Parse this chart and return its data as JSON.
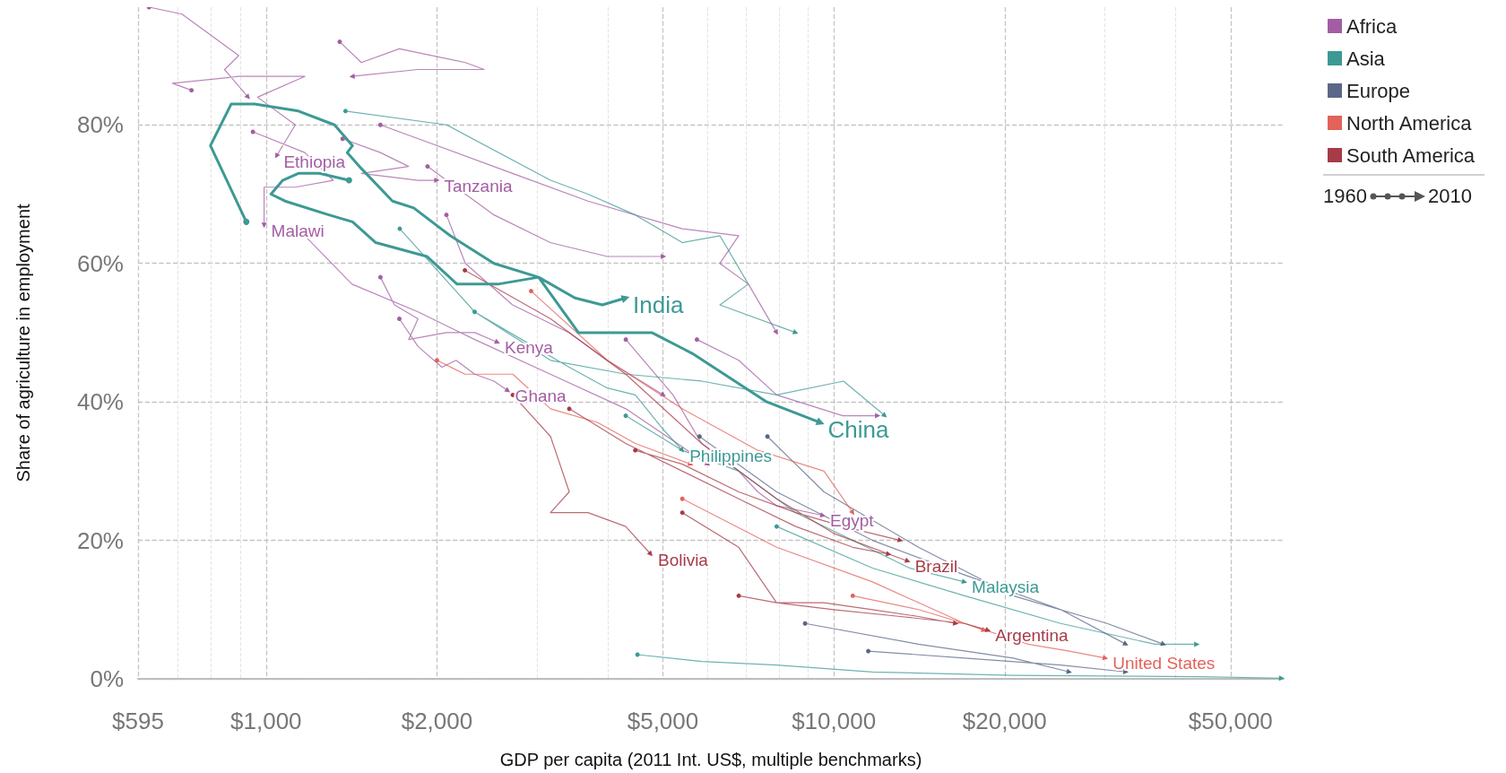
{
  "chart_data": {
    "type": "line",
    "xlabel": "GDP per capita (2011 Int. US$, multiple benchmarks)",
    "ylabel": "Share of agriculture in employment",
    "log": "x",
    "xlim": [
      595,
      62000
    ],
    "xticks": [
      {
        "value": 595,
        "label": "$595"
      },
      {
        "value": 700,
        "label": null
      },
      {
        "value": 800,
        "label": null
      },
      {
        "value": 900,
        "label": null
      },
      {
        "value": 1000,
        "label": "$1,000"
      },
      {
        "value": 2000,
        "label": "$2,000"
      },
      {
        "value": 3000,
        "label": null
      },
      {
        "value": 4000,
        "label": null
      },
      {
        "value": 5000,
        "label": "$5,000"
      },
      {
        "value": 6000,
        "label": null
      },
      {
        "value": 7000,
        "label": null
      },
      {
        "value": 8000,
        "label": null
      },
      {
        "value": 9000,
        "label": null
      },
      {
        "value": 10000,
        "label": "$10,000"
      },
      {
        "value": 20000,
        "label": "$20,000"
      },
      {
        "value": 30000,
        "label": null
      },
      {
        "value": 40000,
        "label": null
      },
      {
        "value": 50000,
        "label": "$50,000"
      }
    ],
    "ylim": [
      0,
      97
    ],
    "yticks": [
      {
        "value": 0,
        "label": "0%"
      },
      {
        "value": 20,
        "label": "20%"
      },
      {
        "value": 40,
        "label": "40%"
      },
      {
        "value": 60,
        "label": "60%"
      },
      {
        "value": 80,
        "label": "80%"
      }
    ],
    "grid": true,
    "legend": "top right",
    "series": [
      {
        "name": "Africa",
        "color": "#a35ea3",
        "x": [
          739,
          684,
          895,
          1170,
          966,
          1126,
          1043,
          null,
          948,
          1170,
          1313,
          1126,
          992,
          992,
          null,
          1364,
          1590,
          1783,
          1472,
          1852,
          2000,
          null,
          1590,
          1683,
          1852,
          1783,
          2078,
          2331,
          2557,
          null,
          1717,
          1852,
          2040,
          2161,
          2331,
          2520,
          2667,
          null,
          4302,
          5209,
          5850,
          6800,
          7346,
          7930,
          9570,
          null,
          622,
          711,
          829,
          895,
          845,
          930,
          null,
          1348,
          1472,
          1717,
          2244,
          2422,
          1852,
          1417,
          null,
          1590,
          2717,
          3690,
          5410,
          6800,
          6300,
          7074,
          7930,
          null,
          1925,
          2520,
          3167,
          3988,
          5013,
          null,
          5740,
          6800,
          7930,
          10372,
          11950,
          null,
          1170,
          1417,
          1852,
          2331,
          3167,
          4302,
          6000,
          null,
          2078,
          2244,
          2717,
          3418,
          3988,
          5013
        ],
        "values": [
          85,
          86,
          87,
          87,
          84,
          80,
          75.5,
          null,
          79,
          76,
          72,
          71,
          71,
          65.5,
          null,
          78,
          76,
          74,
          73,
          72,
          72,
          null,
          58,
          54,
          52,
          49,
          50,
          50,
          48.6,
          null,
          52,
          48,
          45,
          46,
          44,
          43,
          41.6,
          null,
          49,
          41,
          34,
          30,
          27,
          25,
          23.6,
          null,
          97,
          96,
          92,
          90,
          88,
          84,
          null,
          92,
          89,
          91,
          89,
          88,
          88,
          87,
          null,
          80,
          73,
          69,
          65,
          64,
          60,
          57,
          50,
          null,
          74,
          67,
          63,
          61,
          61,
          null,
          49,
          46,
          41,
          38,
          38,
          null,
          64,
          57,
          53,
          49,
          44,
          39,
          31,
          null,
          67,
          60,
          54,
          50,
          46,
          41
        ]
      },
      {
        "name": "Asia",
        "color": "#3d9994",
        "x": [
          2330,
          2820,
          3420,
          3990,
          4470,
          5010,
          5410,
          null,
          4300,
          5410,
          6800,
          8570,
          10800,
          13600,
          17000,
          null,
          1380,
          2080,
          3170,
          3690,
          4470,
          5410,
          6300,
          7070,
          6300,
          8570,
          null,
          1720,
          2330,
          3170,
          4300,
          5850,
          7930,
          10400,
          12300,
          null,
          4510,
          5850,
          7930,
          11700,
          20700,
          44400,
          61500,
          null,
          7930,
          11700,
          17000,
          25100,
          36800,
          43600
        ],
        "values": [
          53,
          49,
          45,
          42,
          41,
          36,
          33,
          null,
          38,
          33,
          30,
          24,
          20,
          16,
          14,
          null,
          82,
          80,
          72,
          70,
          67,
          63,
          64,
          57,
          54,
          50,
          null,
          65,
          53,
          46,
          44,
          43,
          41,
          43,
          38,
          null,
          3.5,
          2.5,
          2,
          1,
          0.5,
          0.3,
          0.1,
          null,
          22,
          16,
          12,
          8,
          5,
          5
        ]
      },
      {
        "name": "Europe",
        "color": "#5b6788",
        "x": [
          8900,
          14100,
          20700,
          26000,
          null,
          11500,
          17000,
          25100,
          32700,
          null,
          7640,
          9610,
          14100,
          20700,
          30300,
          38100,
          null,
          5800,
          7930,
          11700,
          17000,
          25100,
          32700
        ],
        "values": [
          8,
          5,
          3,
          1,
          null,
          4,
          3,
          2,
          1,
          null,
          35,
          27,
          19,
          12,
          8,
          5,
          null,
          35,
          27,
          20,
          15,
          10,
          5
        ]
      },
      {
        "name": "North America",
        "color": "#e3625a",
        "x": [
          10800,
          14100,
          17000,
          22000,
          26000,
          30100,
          null,
          2930,
          3990,
          5410,
          7350,
          9610,
          10800,
          null,
          5410,
          7930,
          11700,
          14100,
          17000,
          18400,
          null,
          2000,
          2240,
          2720,
          3170,
          3840,
          4470,
          5600
        ],
        "values": [
          12,
          10,
          8,
          5,
          4,
          3,
          null,
          56,
          46,
          39,
          33,
          30,
          24,
          null,
          26,
          19,
          14,
          11,
          8,
          7,
          null,
          46,
          44,
          44,
          39,
          37,
          34,
          31
        ]
      },
      {
        "name": "South America",
        "color": "#a73b48",
        "x": [
          2720,
          3170,
          3420,
          3170,
          3690,
          4300,
          4760,
          null,
          2240,
          3170,
          4300,
          5850,
          7930,
          10000,
          13500,
          null,
          5410,
          6800,
          7930,
          10000,
          13100,
          17000,
          18700,
          null,
          3420,
          4300,
          5410,
          6800,
          8570,
          10800,
          12500,
          null,
          6800,
          7930,
          9610,
          11700,
          14100,
          16400,
          null,
          4470,
          5410,
          6800,
          8570,
          10400,
          13100
        ],
        "values": [
          41,
          35,
          27,
          24,
          24,
          22,
          18,
          null,
          59,
          52,
          44,
          34,
          26,
          21,
          17,
          null,
          24,
          19,
          11,
          10,
          9,
          8,
          7,
          null,
          39,
          34,
          30,
          26,
          22,
          19,
          18,
          null,
          12,
          11,
          11,
          10,
          9,
          8,
          null,
          33,
          31,
          27,
          24,
          22,
          20
        ]
      },
      {
        "color": "#3d9994",
        "x": [
          923,
          798,
          868,
          955,
          1140,
          1320,
          1420,
          1390,
          1460,
          1670,
          1820,
          2110,
          2520,
          3020,
          3550,
          4780,
          5630,
          7620,
          9480,
          null,
          1400,
          1240,
          1140,
          1070,
          1020,
          1080,
          1290,
          1420,
          1560,
          1920,
          2170,
          2560,
          3020,
          3500,
          3910,
          4300
        ],
        "values": [
          66,
          77,
          83,
          83,
          82,
          80,
          77,
          76,
          74,
          69,
          68,
          64,
          60,
          58,
          50,
          50,
          47,
          40,
          37,
          null,
          72,
          73,
          73,
          72,
          70,
          69,
          67,
          66,
          63,
          61,
          57,
          57,
          58,
          55,
          54,
          55
        ]
      }
    ],
    "annotations": [
      "1960",
      "2010",
      {
        "text": "Ethiopia",
        "x": 1043,
        "y": 75.5
      },
      {
        "text": "Malawi",
        "x": 992,
        "y": 65.5
      },
      {
        "text": "Tanzania",
        "x": 2000,
        "y": 72
      },
      {
        "text": "India",
        "x": 4300,
        "y": 55
      },
      {
        "text": "Kenya",
        "x": 2557,
        "y": 48.6
      },
      {
        "text": "Ghana",
        "x": 2667,
        "y": 41.6
      },
      {
        "text": "China",
        "x": 9480,
        "y": 37
      },
      {
        "text": "Philippines",
        "x": 5410,
        "y": 33
      },
      {
        "text": "Egypt",
        "x": 9570,
        "y": 23.6
      },
      {
        "text": "Bolivia",
        "x": 4760,
        "y": 18
      },
      {
        "text": "Brazil",
        "x": 13500,
        "y": 17
      },
      {
        "text": "Malaysia",
        "x": 17000,
        "y": 14
      },
      {
        "text": "Argentina",
        "x": 18700,
        "y": 7
      },
      {
        "text": "United States",
        "x": 30100,
        "y": 3
      }
    ]
  }
}
